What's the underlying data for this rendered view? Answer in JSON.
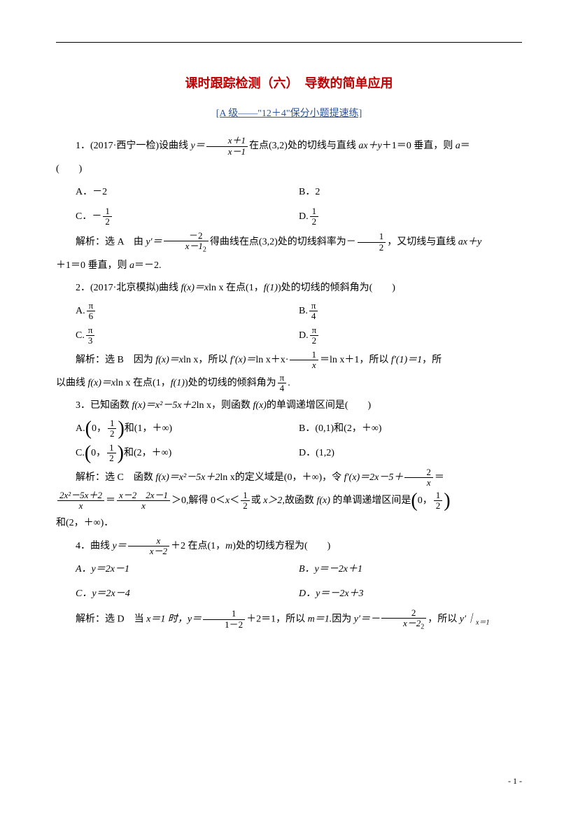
{
  "colors": {
    "title_color": "#c00000",
    "subtitle_color": "#2f5496",
    "text_color": "#000000",
    "background": "#ffffff"
  },
  "typography": {
    "body_fontsize": 14,
    "title_fontsize": 18,
    "line_height": 2.2
  },
  "title": "课时跟踪检测（六）　导数的简单应用",
  "subtitle": "[A 级——\"12＋4\"保分小题提速练]",
  "q1": {
    "stem_pre": "1．(2017·西宁一检)设曲线 ",
    "stem_mid": "在点(3,2)处的切线与直线 ",
    "stem_end": "＋1＝0 垂直，则 ",
    "stem_last": "＝",
    "paren": "(　　)",
    "yeq": "y＝",
    "frac_num": "x＋1",
    "frac_den": "x－1",
    "ax_y": "ax＋y",
    "a": "a",
    "optA": "A．－2",
    "optB": "B．2",
    "optC_pre": "C．－",
    "optC_num": "1",
    "optC_den": "2",
    "optD_pre": "D.",
    "optD_num": "1",
    "optD_den": "2",
    "ans_pre": "解析：选 A　由 ",
    "ans_yprime": "y′＝",
    "ans_frac_num": "－2",
    "ans_frac_den": "x－1",
    "ans_mid": "得曲线在点(3,2)处的切线斜率为－",
    "ans_half_num": "1",
    "ans_half_den": "2",
    "ans_mid2": "，又切线与直线 ",
    "ans_line2": "＋1＝0 垂直，则 ",
    "ans_end": "＝－2."
  },
  "q2": {
    "stem_pre": "2．(2017·北京模拟)曲线 ",
    "fx": "f(x)＝x",
    "lnx": "ln x",
    "stem_mid": " 在点(1，",
    "f1": "f(1)",
    "stem_end": ")处的切线的倾斜角为(　　)",
    "optA_pre": "A.",
    "optB_pre": "B.",
    "optC_pre": "C.",
    "optD_pre": "D.",
    "pi": "π",
    "d6": "6",
    "d4": "4",
    "d3": "3",
    "d2": "2",
    "ans_pre": "解析：选 B　因为 ",
    "ans_fx": "f(x)＝x",
    "ans_mid1": "，所以 ",
    "ans_fprime": "f′(x)＝",
    "ans_mid2": "ln x＋x·",
    "ans_1x_num": "1",
    "ans_1x_den": "x",
    "ans_mid3": "＝ln x＋1，所以 ",
    "ans_f1": "f′(1)＝1",
    "ans_mid4": "，所",
    "ans_line2_pre": "以曲线 ",
    "ans_line2_mid": " 在点(1，",
    "ans_line2_end": ")处的切线的倾斜角为",
    "ans_pi4_num": "π",
    "ans_pi4_den": "4",
    "ans_period": "."
  },
  "q3": {
    "stem_pre": "3．已知函数 ",
    "fx": "f(x)＝x²－5x＋2",
    "lnx": "ln x",
    "stem_mid": "，则函数 ",
    "fx2": "f(x)",
    "stem_end": "的单调递增区间是(　　)",
    "optA_pre": "A.",
    "optA_mid": "和(1，＋∞)",
    "half_num": "1",
    "half_den": "2",
    "zero": "0，",
    "optB": "B．(0,1)和(2，＋∞)",
    "optC_pre": "C.",
    "optC_mid": "和(2，＋∞)",
    "optD": "D．(1,2)",
    "ans_pre": "解析：选 C　函数 ",
    "ans_fx": "f(x)＝x²－5x＋2",
    "ans_mid1": "的定义域是(0，＋∞)，令 ",
    "ans_fprime": "f′(x)＝2x－5＋",
    "ans_2x_num": "2",
    "ans_2x_den": "x",
    "ans_eq": "＝",
    "ans_big_num": "2x²－5x＋2",
    "ans_big_den": "x",
    "ans_factored_num": "x－2　2x－1",
    "ans_factored_den": "x",
    "ans_gt0": "＞0,解得 0＜",
    "ans_x": "x",
    "ans_lt": "＜",
    "ans_or": "或 ",
    "ans_xgt2": "x＞2,",
    "ans_mid3": "故函数 ",
    "ans_end": " 的单调递增区间是",
    "ans_line3": "和(2，＋∞)．"
  },
  "q4": {
    "stem_pre": "4．曲线 ",
    "yeq": "y＝",
    "frac_num": "x",
    "frac_den": "x－2",
    "plus2": "＋2 在点(1，",
    "m": "m",
    "stem_end": ")处的切线方程为(　　)",
    "optA": "A．y＝2x－1",
    "optB": "B．y＝－2x＋1",
    "optC": "C．y＝2x－4",
    "optD": "D．y＝－2x＋3",
    "ans_pre": "解析：选 D　当 ",
    "ans_x1": "x＝1 时，y＝",
    "ans_f_num": "1",
    "ans_f_den": "1－2",
    "ans_mid1": "＋2＝1，所以 ",
    "ans_m1": "m＝1.",
    "ans_mid2": "因为 ",
    "ans_yprime": "y′＝－",
    "ans_f2_num": "2",
    "ans_f2_den": "x－2",
    "ans_mid3": "，所以 ",
    "ans_end": "y′｜",
    "ans_sub": "x＝1"
  },
  "page_num": "- 1 -"
}
